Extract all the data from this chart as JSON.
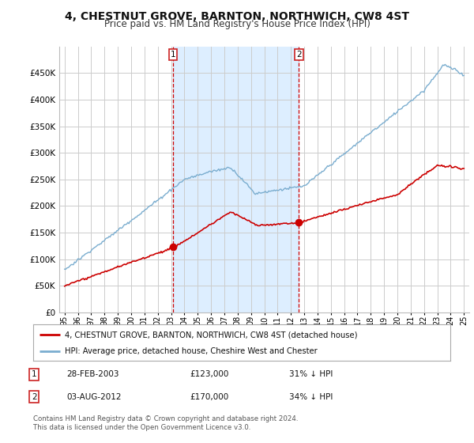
{
  "title": "4, CHESTNUT GROVE, BARNTON, NORTHWICH, CW8 4ST",
  "subtitle": "Price paid vs. HM Land Registry's House Price Index (HPI)",
  "title_fontsize": 10,
  "subtitle_fontsize": 8.5,
  "legend_line1": "4, CHESTNUT GROVE, BARNTON, NORTHWICH, CW8 4ST (detached house)",
  "legend_line2": "HPI: Average price, detached house, Cheshire West and Chester",
  "footer": "Contains HM Land Registry data © Crown copyright and database right 2024.\nThis data is licensed under the Open Government Licence v3.0.",
  "table_rows": [
    {
      "num": "1",
      "date": "28-FEB-2003",
      "price": "£123,000",
      "pct": "31% ↓ HPI"
    },
    {
      "num": "2",
      "date": "03-AUG-2012",
      "price": "£170,000",
      "pct": "34% ↓ HPI"
    }
  ],
  "sale1_x": 2003.1507,
  "sale1_y": 123000,
  "sale2_x": 2012.589,
  "sale2_y": 170000,
  "red_line_color": "#cc0000",
  "blue_line_color": "#7aadcf",
  "shade_color": "#ddeeff",
  "background_color": "#ffffff",
  "grid_color": "#cccccc",
  "vline_color": "#cc0000",
  "ylim": [
    0,
    500000
  ],
  "yticks": [
    0,
    50000,
    100000,
    150000,
    200000,
    250000,
    300000,
    350000,
    400000,
    450000
  ],
  "xlim_lo": 1994.6,
  "xlim_hi": 2025.4
}
